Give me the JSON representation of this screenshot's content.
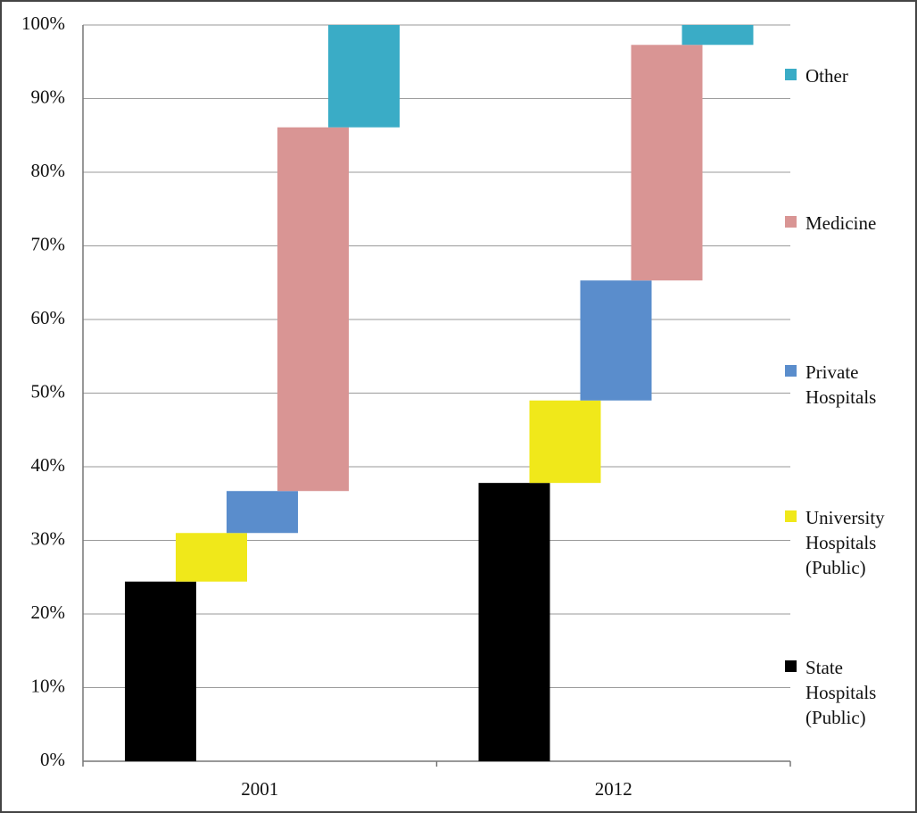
{
  "chart_data": {
    "type": "waterfall-stacked",
    "categories": [
      "2001",
      "2012"
    ],
    "series": [
      {
        "name": "State Hospitals (Public)",
        "color": "#000000",
        "values": [
          24.4,
          37.8
        ]
      },
      {
        "name": "University Hospitals (Public)",
        "color": "#f0e81a",
        "values": [
          6.6,
          11.2
        ]
      },
      {
        "name": "Private Hospitals",
        "color": "#5a8dcc",
        "values": [
          5.7,
          16.3
        ]
      },
      {
        "name": "Medicine",
        "color": "#d99594",
        "values": [
          49.4,
          32.0
        ]
      },
      {
        "name": "Other",
        "color": "#3aacc6",
        "values": [
          13.9,
          2.7
        ]
      }
    ],
    "ylim": [
      0,
      100
    ],
    "yticks": [
      {
        "value": 0,
        "label": "0%"
      },
      {
        "value": 10,
        "label": "10%"
      },
      {
        "value": 20,
        "label": "20%"
      },
      {
        "value": 30,
        "label": "30%"
      },
      {
        "value": 40,
        "label": "40%"
      },
      {
        "value": 50,
        "label": "50%"
      },
      {
        "value": 60,
        "label": "60%"
      },
      {
        "value": 70,
        "label": "70%"
      },
      {
        "value": 80,
        "label": "80%"
      },
      {
        "value": 90,
        "label": "90%"
      },
      {
        "value": 100,
        "label": "100%"
      }
    ],
    "grid": true,
    "legend": "right"
  }
}
